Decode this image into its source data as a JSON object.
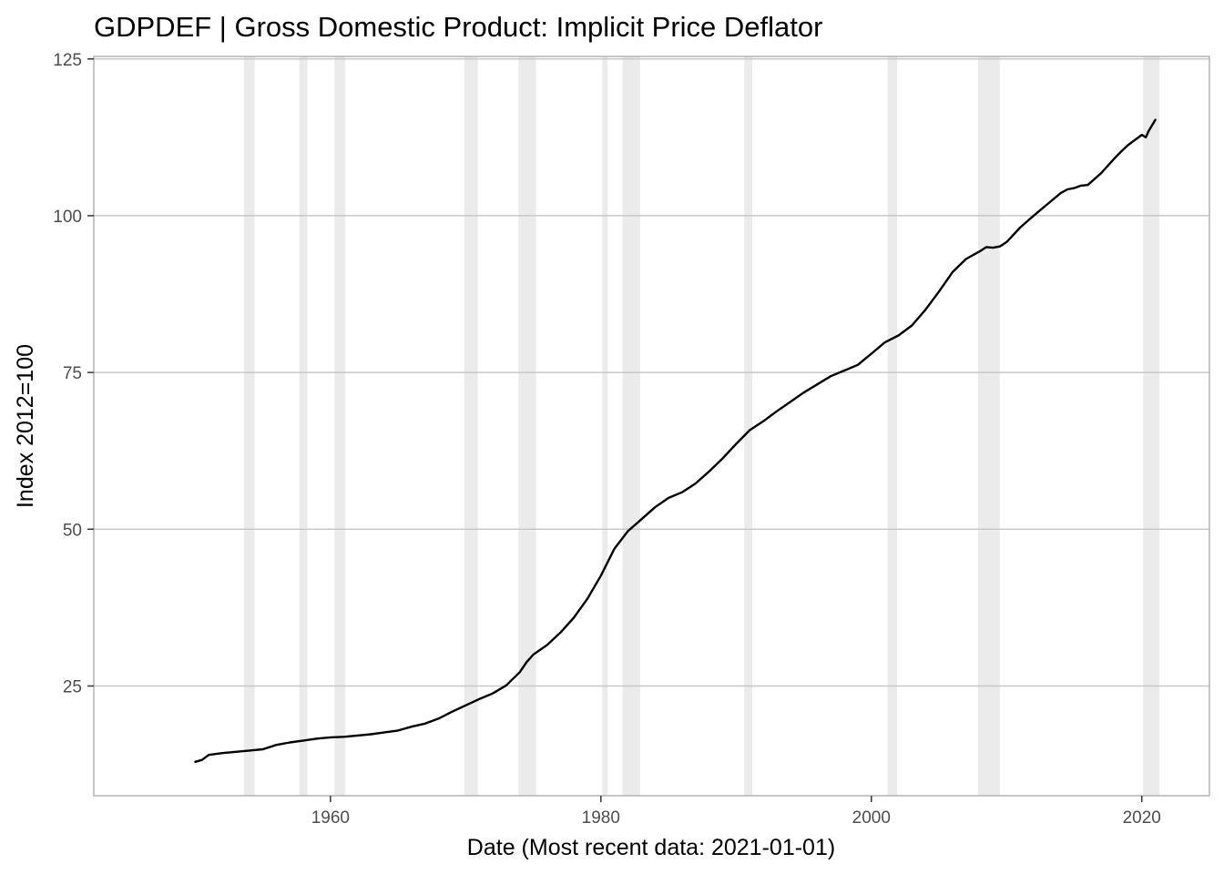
{
  "chart_data": {
    "type": "line",
    "title": "GDPDEF | Gross Domestic Product: Implicit Price Deflator",
    "xlabel": "Date (Most recent data: 2021-01-01)",
    "ylabel": "Index 2012=100",
    "xlim": [
      1942.5,
      2025.0
    ],
    "ylim": [
      7.5,
      125.4
    ],
    "x_ticks": [
      1960,
      1980,
      2000,
      2020
    ],
    "y_ticks": [
      25,
      50,
      75,
      100,
      125
    ],
    "grid": true,
    "legend": "none",
    "line_color": "#000000",
    "recession_color": "#ebebeb",
    "recessions": [
      {
        "start": 1953.6,
        "end": 1954.4
      },
      {
        "start": 1957.7,
        "end": 1958.3
      },
      {
        "start": 1960.3,
        "end": 1961.1
      },
      {
        "start": 1969.9,
        "end": 1970.9
      },
      {
        "start": 1973.9,
        "end": 1975.2
      },
      {
        "start": 1980.1,
        "end": 1980.5
      },
      {
        "start": 1981.6,
        "end": 1982.9
      },
      {
        "start": 1990.6,
        "end": 1991.2
      },
      {
        "start": 2001.2,
        "end": 2001.9
      },
      {
        "start": 2007.9,
        "end": 2009.5
      },
      {
        "start": 2020.1,
        "end": 2021.3
      }
    ],
    "series": [
      {
        "x": [
          1950.0,
          1950.5,
          1951.0,
          1952.0,
          1953.0,
          1954.0,
          1955.0,
          1956.0,
          1957.0,
          1958.0,
          1959.0,
          1960.0,
          1961.0,
          1962.0,
          1963.0,
          1964.0,
          1965.0,
          1966.0,
          1967.0,
          1968.0,
          1969.0,
          1970.0,
          1971.0,
          1972.0,
          1973.0,
          1974.0,
          1974.5,
          1975.0,
          1976.0,
          1977.0,
          1978.0,
          1979.0,
          1980.0,
          1981.0,
          1981.5,
          1982.0,
          1983.0,
          1984.0,
          1985.0,
          1986.0,
          1987.0,
          1988.0,
          1989.0,
          1990.0,
          1991.0,
          1992.0,
          1993.0,
          1994.0,
          1995.0,
          1996.0,
          1997.0,
          1998.0,
          1999.0,
          2000.0,
          2001.0,
          2002.0,
          2003.0,
          2004.0,
          2005.0,
          2006.0,
          2007.0,
          2008.0,
          2008.5,
          2009.0,
          2009.5,
          2010.0,
          2011.0,
          2012.0,
          2013.0,
          2014.0,
          2014.5,
          2015.0,
          2015.5,
          2016.0,
          2017.0,
          2018.0,
          2018.5,
          2019.0,
          2020.0,
          2020.3,
          2020.5,
          2021.0
        ],
        "y": [
          12.9,
          13.2,
          14.0,
          14.3,
          14.5,
          14.7,
          14.9,
          15.6,
          16.0,
          16.3,
          16.6,
          16.8,
          16.9,
          17.1,
          17.3,
          17.6,
          17.9,
          18.5,
          19.0,
          19.8,
          20.9,
          21.9,
          22.9,
          23.8,
          25.1,
          27.2,
          28.8,
          30.0,
          31.5,
          33.5,
          35.9,
          38.9,
          42.6,
          46.9,
          48.3,
          49.7,
          51.6,
          53.5,
          55.0,
          55.9,
          57.3,
          59.2,
          61.3,
          63.6,
          65.8,
          67.2,
          68.8,
          70.3,
          71.8,
          73.1,
          74.4,
          75.3,
          76.2,
          78.0,
          79.8,
          80.9,
          82.5,
          85.0,
          87.9,
          91.0,
          93.1,
          94.3,
          95.0,
          94.9,
          95.1,
          95.8,
          98.1,
          100.0,
          101.8,
          103.6,
          104.2,
          104.4,
          104.8,
          104.9,
          106.8,
          109.2,
          110.3,
          111.3,
          112.9,
          112.5,
          113.5,
          115.3
        ]
      }
    ]
  }
}
